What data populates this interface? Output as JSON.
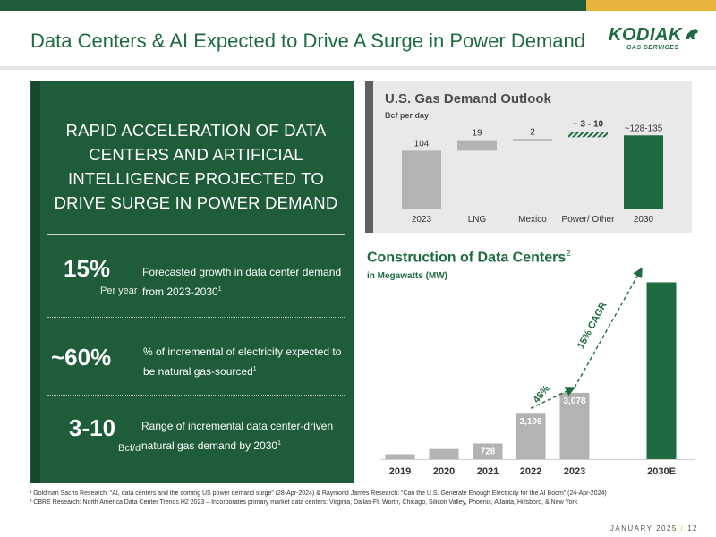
{
  "title": "Data Centers & AI Expected to Drive A Surge in Power Demand",
  "logo": {
    "word": "KODIAK",
    "sub": "GAS SERVICES"
  },
  "colors": {
    "green": "#1e6b3f",
    "dark_green": "#1e5c3a",
    "gold": "#e8b33a",
    "gray_bar": "#b3b3b3"
  },
  "left_panel": {
    "headline": "RAPID ACCELERATION OF DATA CENTERS AND ARTIFICIAL INTELLIGENCE PROJECTED TO DRIVE SURGE IN POWER DEMAND",
    "stats": [
      {
        "big": "15%",
        "unit": "Per year",
        "desc": "Forecasted growth in data center demand from 2023-2030",
        "sup": "1"
      },
      {
        "big": "~60%",
        "unit": "",
        "desc": "% of incremental of electricity expected to be natural gas-sourced",
        "sup": "1"
      },
      {
        "big": "3-10",
        "unit": "Bcf/d",
        "desc": "Range of incremental data center-driven natural gas demand by 2030",
        "sup": "1"
      }
    ]
  },
  "gas_outlook": {
    "title": "U.S. Gas Demand Outlook",
    "subtitle": "Bcf per day"
  },
  "construction": {
    "title": "Construction of Data Centers",
    "title_sup": "2",
    "subtitle": "in Megawatts (MW)",
    "annotation_46": "46%",
    "annotation_cagr": "15% CAGR"
  },
  "chart_data": [
    {
      "type": "bar",
      "subtype": "waterfall",
      "title": "U.S. Gas Demand Outlook",
      "ylabel": "Bcf per day",
      "categories": [
        "2023",
        "LNG",
        "Mexico",
        "Power/ Other",
        "2030"
      ],
      "labels": [
        "104",
        "19",
        "2",
        "~ 3 - 10",
        "~128-135"
      ],
      "base": [
        0,
        104,
        123,
        125,
        0
      ],
      "values": [
        104,
        19,
        2,
        6.5,
        131.5
      ],
      "colors": [
        "#b3b3b3",
        "#b3b3b3",
        "#b3b3b3",
        "hatched-green",
        "#1e6b3f"
      ],
      "ylim": [
        0,
        140
      ]
    },
    {
      "type": "bar",
      "title": "Construction of Data Centers",
      "ylabel": "in Megawatts (MW)",
      "categories": [
        "2019",
        "2020",
        "2021",
        "2022",
        "2023",
        "2030E"
      ],
      "values": [
        230,
        470,
        728,
        2109,
        3078,
        8200
      ],
      "labels": [
        "",
        "",
        "728",
        "2,109",
        "3,078",
        ""
      ],
      "colors": [
        "#b3b3b3",
        "#b3b3b3",
        "#b3b3b3",
        "#b3b3b3",
        "#b3b3b3",
        "#1e6b3f"
      ],
      "ylim": [
        0,
        8800
      ]
    }
  ],
  "footnotes": [
    "¹ Goldman Sachs Research: “AI, data centers and the coming US power demand surge” (28-Apr-2024) & Raymond James Research: “Can the U.S. Generate Enough Electricity for the AI Boom” (24-Apr-2024)",
    "² CBRE Research: North America Data Center Trends H2 2023 – Incorporates primary market data centers: Virginia, Dallas-Ft. Worth, Chicago, Silicon Valley, Phoenix, Atlanta, Hillsboro, & New York"
  ],
  "footer": {
    "date": "JANUARY 2025",
    "sep": "/",
    "page": "12"
  }
}
